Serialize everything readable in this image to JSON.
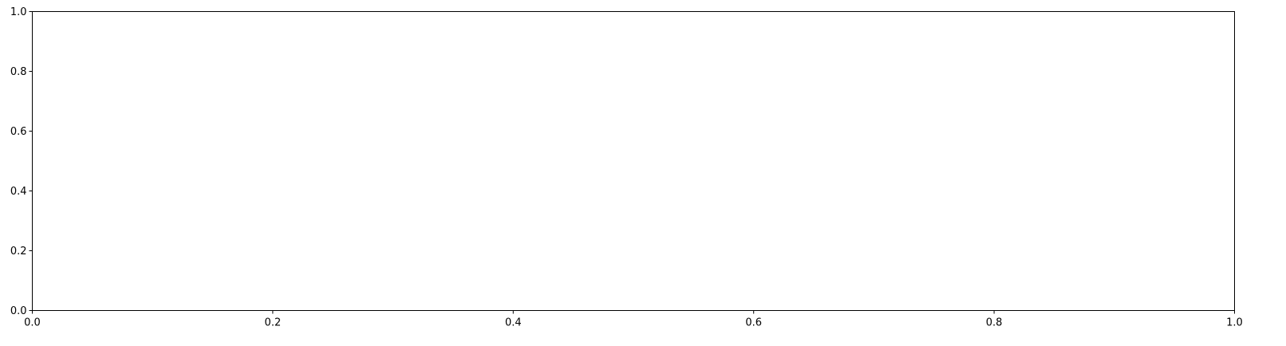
{
  "chart_data": {
    "type": "line",
    "title": "",
    "xlabel": "",
    "ylabel": "",
    "xlim": [
      0.0,
      1.0
    ],
    "ylim": [
      0.0,
      1.0
    ],
    "x_ticks": [
      0.0,
      0.2,
      0.4,
      0.6,
      0.8,
      1.0
    ],
    "y_ticks": [
      0.0,
      0.2,
      0.4,
      0.6,
      0.8,
      1.0
    ],
    "x_tick_labels": [
      "0.0",
      "0.2",
      "0.4",
      "0.6",
      "0.8",
      "1.0"
    ],
    "y_tick_labels": [
      "0.0",
      "0.2",
      "0.4",
      "0.6",
      "0.8",
      "1.0"
    ],
    "series": [],
    "grid": false,
    "legend": "none",
    "colors": {
      "axes": "#000000",
      "background": "#ffffff"
    }
  }
}
